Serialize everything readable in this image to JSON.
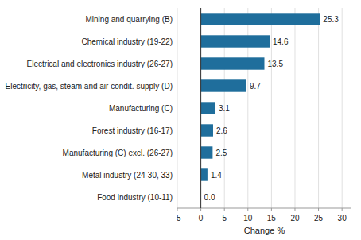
{
  "chart_data": {
    "type": "bar",
    "orientation": "horizontal",
    "categories": [
      "Food industry (10-11)",
      "Metal industry (24-30, 33)",
      "Manufacturing (C) excl. (26-27)",
      "Forest industry (16-17)",
      "Manufacturing (C)",
      "Electricity, gas, steam and air condit. supply (D)",
      "Electrical and electronics industry (26-27)",
      "Chemical industry (19-22)",
      "Mining and quarrying (B)"
    ],
    "values": [
      0.0,
      1.4,
      2.5,
      2.6,
      3.1,
      9.7,
      13.5,
      14.6,
      25.3
    ],
    "value_labels": [
      "0.0",
      "1.4",
      "2.5",
      "2.6",
      "3.1",
      "9.7",
      "13.5",
      "14.6",
      "25.3"
    ],
    "data_labels": true,
    "color": "#1f6e9c",
    "xlabel": "Change %",
    "xlim": [
      -5,
      32
    ],
    "xticks": [
      -5,
      0,
      5,
      10,
      15,
      20,
      25,
      30
    ],
    "grid": true
  }
}
